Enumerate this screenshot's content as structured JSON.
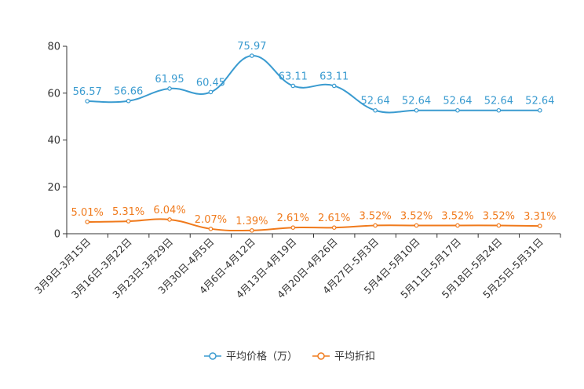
{
  "chart_data": {
    "type": "line",
    "title": "",
    "xlabel": "",
    "ylabel": "",
    "ylim": [
      0,
      80
    ],
    "yticks": [
      0,
      20,
      40,
      60,
      80
    ],
    "grid": false,
    "legend_position": "bottom-center",
    "categories": [
      "3月9日-3月15日",
      "3月16日-3月22日",
      "3月23日-3月29日",
      "3月30日-4月5日",
      "4月6日-4月12日",
      "4月13日-4月19日",
      "4月20日-4月26日",
      "4月27日-5月3日",
      "5月4日-5月10日",
      "5月11日-5月17日",
      "5月18日-5月24日",
      "5月25日-5月31日"
    ],
    "series": [
      {
        "name": "平均价格（万）",
        "color": "#3a9bd0",
        "values": [
          56.57,
          56.66,
          61.95,
          60.45,
          75.97,
          63.11,
          63.11,
          52.64,
          52.64,
          52.64,
          52.64,
          52.64
        ],
        "labels": [
          "56.57",
          "56.66",
          "61.95",
          "60.45",
          "75.97",
          "63.11",
          "63.11",
          "52.64",
          "52.64",
          "52.64",
          "52.64",
          "52.64"
        ]
      },
      {
        "name": "平均折扣",
        "color": "#f07a1c",
        "values": [
          5.01,
          5.31,
          6.04,
          2.07,
          1.39,
          2.61,
          2.61,
          3.52,
          3.52,
          3.52,
          3.52,
          3.31
        ],
        "labels": [
          "5.01%",
          "5.31%",
          "6.04%",
          "2.07%",
          "1.39%",
          "2.61%",
          "2.61%",
          "3.52%",
          "3.52%",
          "3.52%",
          "3.52%",
          "3.31%"
        ]
      }
    ]
  }
}
